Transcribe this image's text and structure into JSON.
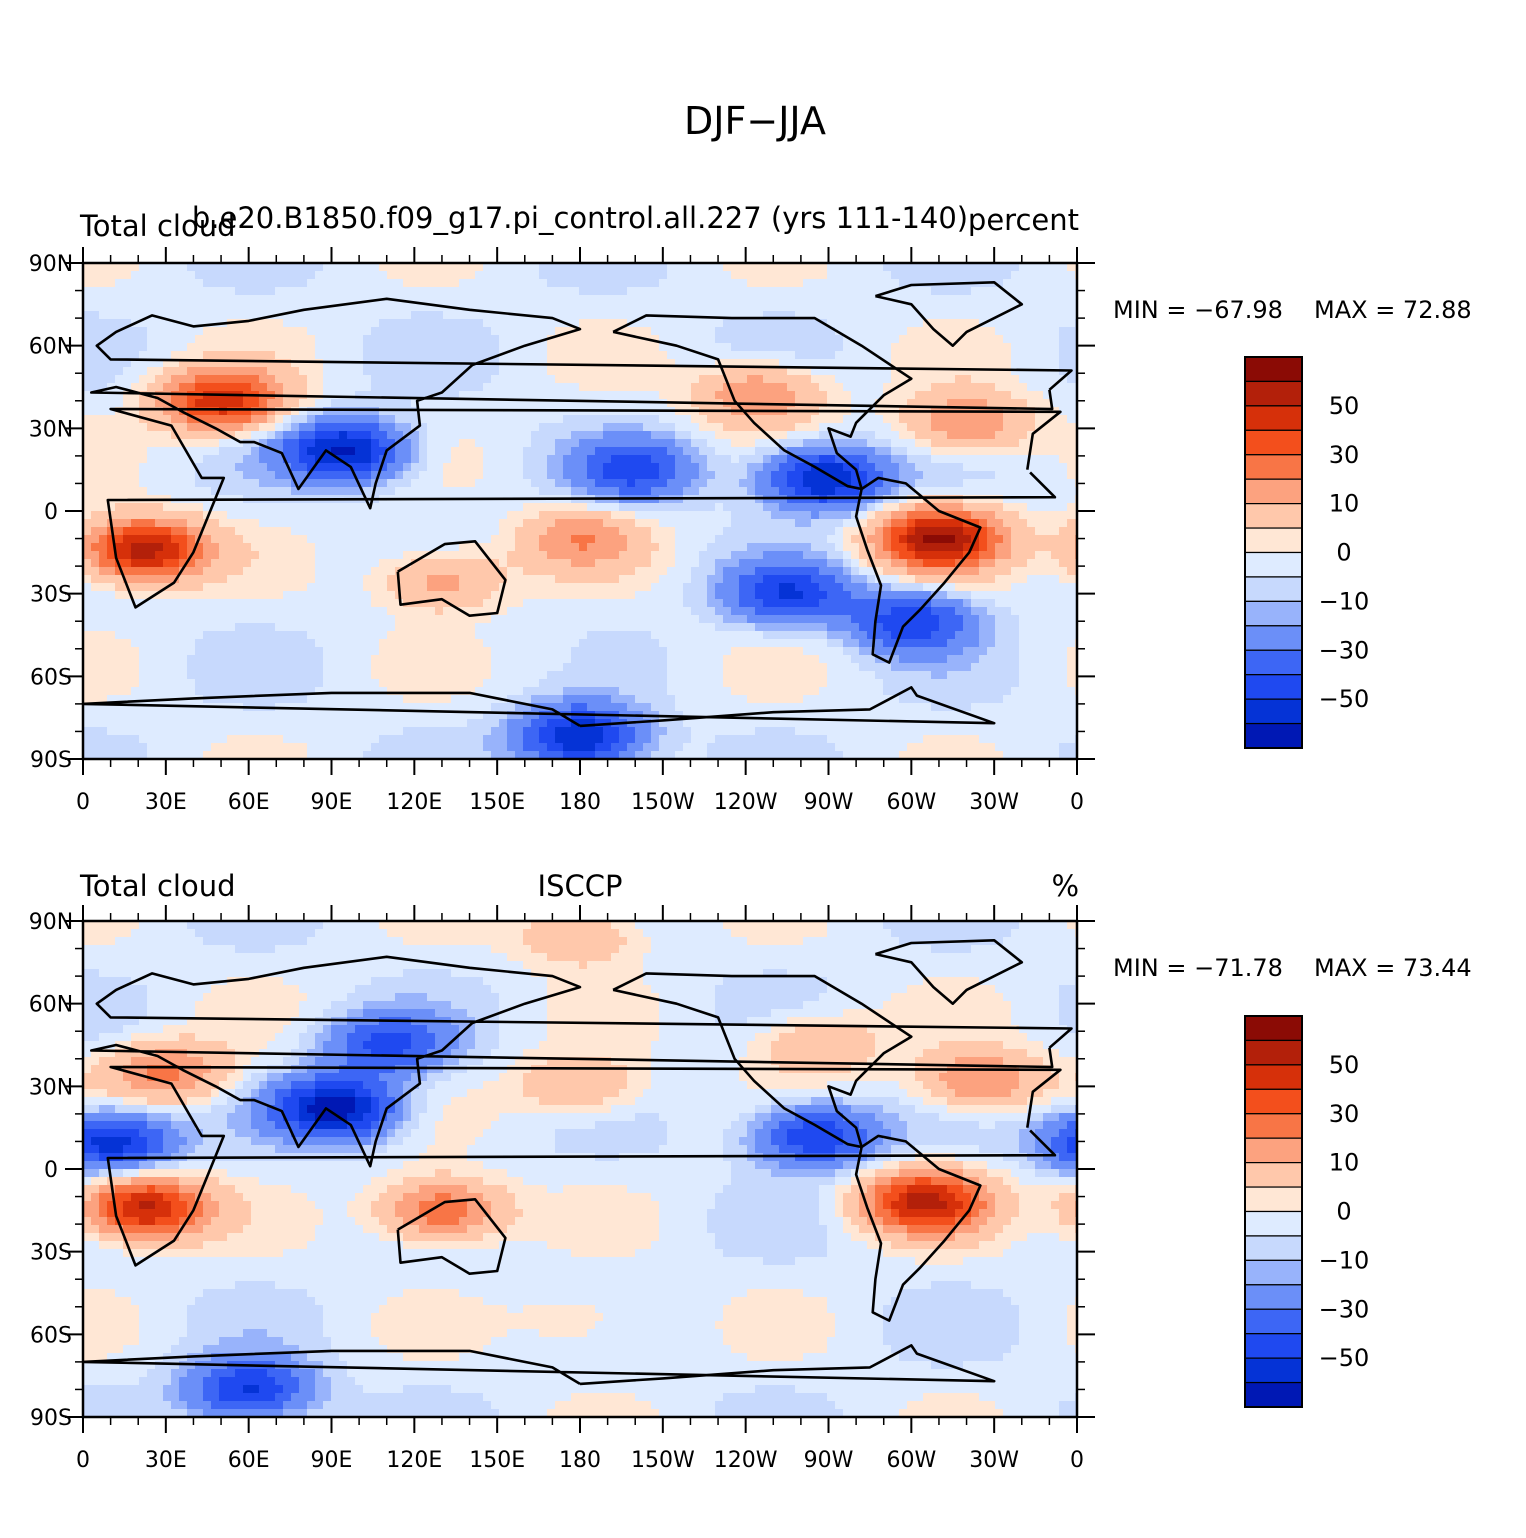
{
  "figure": {
    "title": "DJF−JJA"
  },
  "colors": {
    "levels": [
      "#00008b",
      "#0018b4",
      "#0533d6",
      "#1f49f0",
      "#3d66f5",
      "#6b8ff8",
      "#98b3fb",
      "#c7d9fd",
      "#deebff",
      "#ffe7d5",
      "#ffc8ab",
      "#fca27f",
      "#f87546",
      "#f34f1c",
      "#d6300a",
      "#b3200a",
      "#8b0b05"
    ],
    "coast": "#000000"
  },
  "chart_data": [
    {
      "type": "heatmap",
      "kind": "global lat-lon filled contour map",
      "title_left": "Total cloud",
      "title_center": "b.e20.B1850.f09_g17.pi_control.all.227 (yrs 111-140)",
      "title_right": "percent",
      "min_label": "MIN = −67.98",
      "max_label": "MAX =   72.88",
      "min": -67.98,
      "max": 72.88,
      "x_tick_labels": [
        "0",
        "30E",
        "60E",
        "90E",
        "120E",
        "150E",
        "180",
        "150W",
        "120W",
        "90W",
        "60W",
        "30W",
        "0"
      ],
      "y_tick_labels": [
        "90N",
        "60N",
        "30N",
        "0",
        "30S",
        "60S",
        "90S"
      ],
      "xlim": [
        0,
        360
      ],
      "ylim": [
        -90,
        90
      ],
      "colorbar_labels": [
        "50",
        "30",
        "10",
        "0",
        "−10",
        "−30",
        "−50"
      ],
      "contour_levels": [
        -70,
        -60,
        -50,
        -40,
        -30,
        -20,
        -10,
        -5,
        0,
        5,
        10,
        20,
        30,
        40,
        50,
        60,
        70
      ],
      "features": [
        {
          "lon": 50,
          "lat": 40,
          "value": 55
        },
        {
          "lon": 22,
          "lat": -14,
          "value": 65
        },
        {
          "lon": 310,
          "lat": -10,
          "value": 68
        },
        {
          "lon": 95,
          "lat": 22,
          "value": -55
        },
        {
          "lon": 268,
          "lat": 12,
          "value": -55
        },
        {
          "lon": 200,
          "lat": 15,
          "value": -35
        },
        {
          "lon": 320,
          "lat": 32,
          "value": 30
        },
        {
          "lon": 245,
          "lat": 42,
          "value": 30
        },
        {
          "lon": 180,
          "lat": -10,
          "value": 25
        },
        {
          "lon": 130,
          "lat": -25,
          "value": 25
        },
        {
          "lon": 255,
          "lat": -30,
          "value": -40
        },
        {
          "lon": 300,
          "lat": -40,
          "value": -40
        },
        {
          "lon": 180,
          "lat": -82,
          "value": -55
        },
        {
          "lon": 180,
          "lat": -55,
          "value": 3
        }
      ]
    },
    {
      "type": "heatmap",
      "kind": "global lat-lon filled contour map",
      "title_left": "Total cloud",
      "title_center": "ISCCP",
      "title_right": "%",
      "min_label": "MIN = −71.78",
      "max_label": "MAX =   73.44",
      "min": -71.78,
      "max": 73.44,
      "x_tick_labels": [
        "0",
        "30E",
        "60E",
        "90E",
        "120E",
        "150E",
        "180",
        "150W",
        "120W",
        "90W",
        "60W",
        "30W",
        "0"
      ],
      "y_tick_labels": [
        "90N",
        "60N",
        "30N",
        "0",
        "30S",
        "60S",
        "90S"
      ],
      "xlim": [
        0,
        360
      ],
      "ylim": [
        -90,
        90
      ],
      "colorbar_labels": [
        "50",
        "30",
        "10",
        "0",
        "−10",
        "−30",
        "−50"
      ],
      "contour_levels": [
        -70,
        -60,
        -50,
        -40,
        -30,
        -20,
        -10,
        -5,
        0,
        5,
        10,
        20,
        30,
        40,
        50,
        60,
        70
      ],
      "features": [
        {
          "lon": 30,
          "lat": 35,
          "value": 30
        },
        {
          "lon": 22,
          "lat": -14,
          "value": 62
        },
        {
          "lon": 305,
          "lat": -12,
          "value": 60
        },
        {
          "lon": 92,
          "lat": 22,
          "value": -60
        },
        {
          "lon": 10,
          "lat": 10,
          "value": -50
        },
        {
          "lon": 110,
          "lat": 45,
          "value": -35
        },
        {
          "lon": 265,
          "lat": 12,
          "value": -45
        },
        {
          "lon": 130,
          "lat": -15,
          "value": 40
        },
        {
          "lon": 325,
          "lat": 32,
          "value": 30
        },
        {
          "lon": 265,
          "lat": 45,
          "value": 20
        },
        {
          "lon": 180,
          "lat": 30,
          "value": 20
        },
        {
          "lon": 180,
          "lat": 85,
          "value": 20
        },
        {
          "lon": 60,
          "lat": -80,
          "value": -45
        },
        {
          "lon": 180,
          "lat": -55,
          "value": 10
        }
      ]
    }
  ]
}
